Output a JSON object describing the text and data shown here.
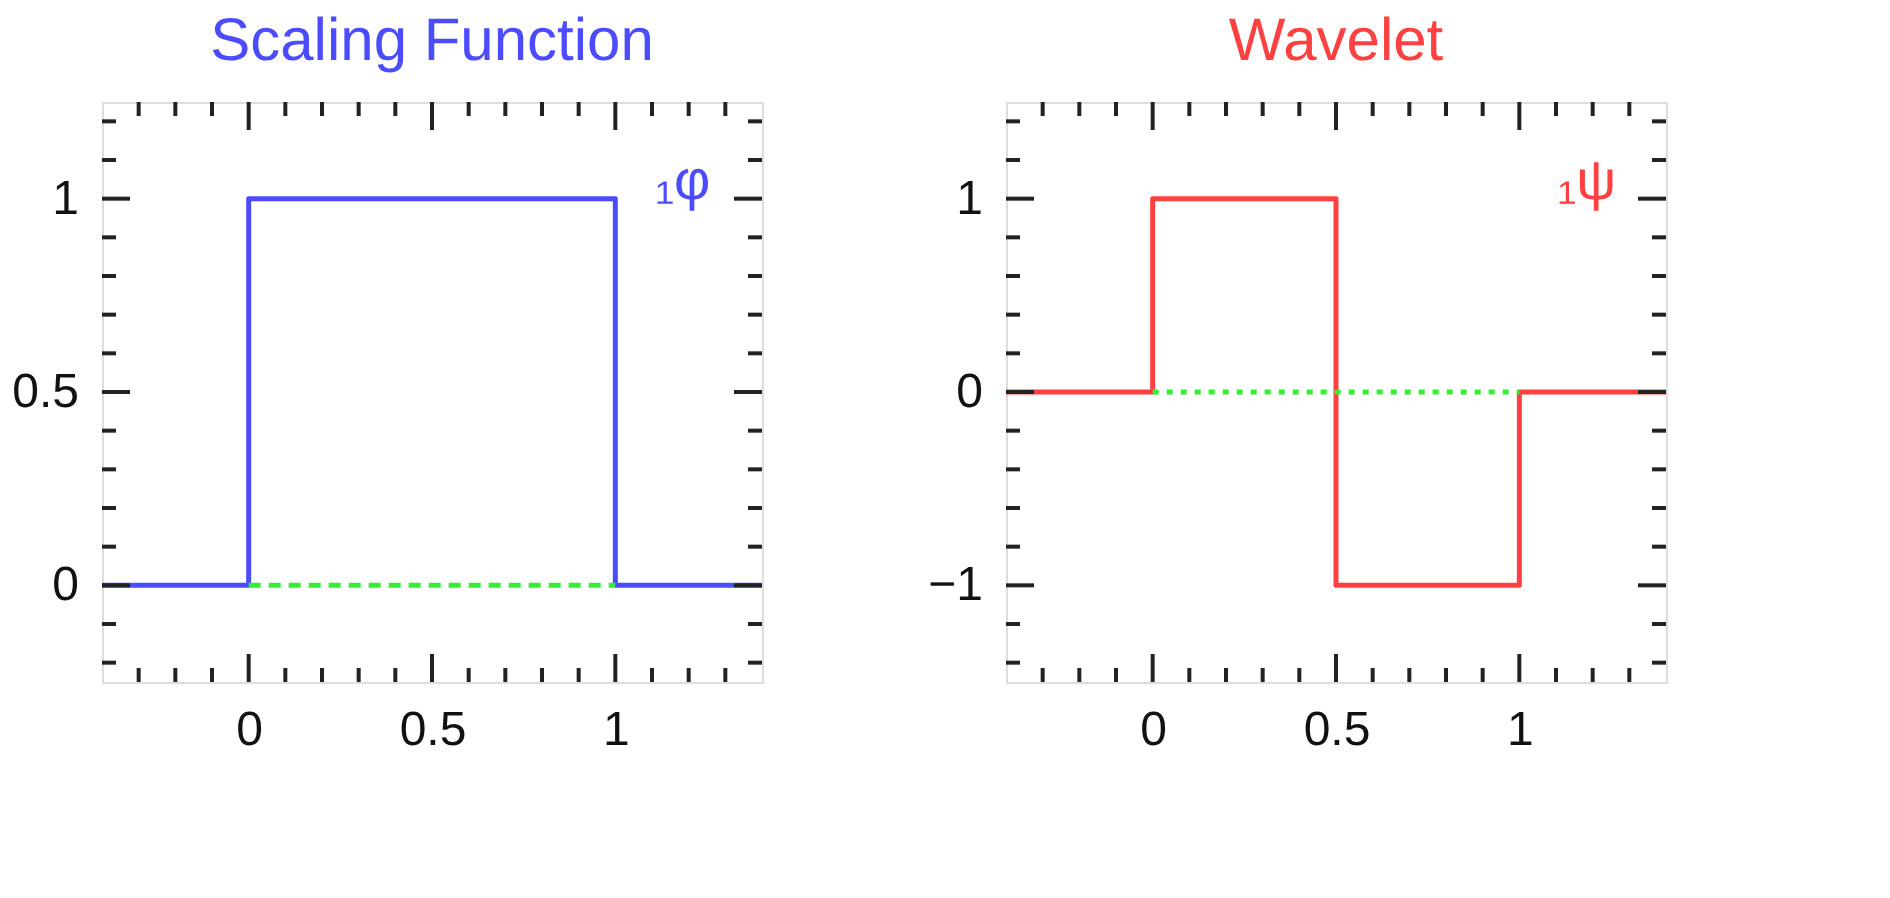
{
  "chart_data": [
    {
      "type": "line",
      "title": "Scaling Function",
      "xlim": [
        -0.4,
        1.4
      ],
      "ylim": [
        -0.25,
        1.25
      ],
      "xticks": [
        {
          "value": -0.3,
          "label": null
        },
        {
          "value": -0.2,
          "label": null
        },
        {
          "value": -0.1,
          "label": null
        },
        0,
        {
          "value": 0.1,
          "label": null
        },
        {
          "value": 0.2,
          "label": null
        },
        {
          "value": 0.3,
          "label": null
        },
        {
          "value": 0.4,
          "label": null
        },
        0.5,
        {
          "value": 0.6,
          "label": null
        },
        {
          "value": 0.7,
          "label": null
        },
        {
          "value": 0.8,
          "label": null
        },
        {
          "value": 0.9,
          "label": null
        },
        1,
        {
          "value": 1.1,
          "label": null
        },
        {
          "value": 1.2,
          "label": null
        },
        {
          "value": 1.3,
          "label": null
        }
      ],
      "yticks": [
        {
          "value": -0.2,
          "label": null
        },
        {
          "value": -0.1,
          "label": null
        },
        0,
        {
          "value": 0.1,
          "label": null
        },
        {
          "value": 0.2,
          "label": null
        },
        {
          "value": 0.3,
          "label": null
        },
        {
          "value": 0.4,
          "label": null
        },
        0.5,
        {
          "value": 0.6,
          "label": null
        },
        {
          "value": 0.7,
          "label": null
        },
        {
          "value": 0.8,
          "label": null
        },
        {
          "value": 0.9,
          "label": null
        },
        1,
        {
          "value": 1.1,
          "label": null
        },
        {
          "value": 1.2,
          "label": null
        }
      ],
      "grid": false,
      "marker": "none",
      "series": [
        {
          "name": "₁φ",
          "color": "#4b4bff",
          "type": "line",
          "line_style": "solid",
          "x": [
            -0.4,
            0,
            0,
            1,
            1,
            1.4
          ],
          "values": [
            0,
            0,
            1,
            1,
            0,
            0
          ]
        },
        {
          "color": "#33ee33",
          "type": "line",
          "line_style": "dashed",
          "x": [
            0,
            1
          ],
          "values": [
            0,
            0
          ]
        }
      ]
    },
    {
      "type": "line",
      "title": "Wavelet",
      "xlim": [
        -0.4,
        1.4
      ],
      "ylim": [
        -1.5,
        1.5
      ],
      "xticks": [
        {
          "value": -0.3,
          "label": null
        },
        {
          "value": -0.2,
          "label": null
        },
        {
          "value": -0.1,
          "label": null
        },
        0,
        {
          "value": 0.1,
          "label": null
        },
        {
          "value": 0.2,
          "label": null
        },
        {
          "value": 0.3,
          "label": null
        },
        {
          "value": 0.4,
          "label": null
        },
        0.5,
        {
          "value": 0.6,
          "label": null
        },
        {
          "value": 0.7,
          "label": null
        },
        {
          "value": 0.8,
          "label": null
        },
        {
          "value": 0.9,
          "label": null
        },
        1,
        {
          "value": 1.1,
          "label": null
        },
        {
          "value": 1.2,
          "label": null
        },
        {
          "value": 1.3,
          "label": null
        }
      ],
      "yticks": [
        {
          "value": -1.4,
          "label": null
        },
        {
          "value": -1.2,
          "label": null
        },
        {
          "value": -1,
          "label": "−1"
        },
        {
          "value": -0.8,
          "label": null
        },
        {
          "value": -0.6,
          "label": null
        },
        {
          "value": -0.4,
          "label": null
        },
        {
          "value": -0.2,
          "label": null
        },
        0,
        {
          "value": 0.2,
          "label": null
        },
        {
          "value": 0.4,
          "label": null
        },
        {
          "value": 0.6,
          "label": null
        },
        {
          "value": 0.8,
          "label": null
        },
        1,
        {
          "value": 1.2,
          "label": null
        },
        {
          "value": 1.4,
          "label": null
        }
      ],
      "grid": false,
      "marker": "none",
      "series": [
        {
          "name": "₁ψ",
          "color": "#ff4040",
          "type": "line",
          "line_style": "solid",
          "x": [
            -0.4,
            0,
            0,
            0.5,
            0.5,
            1,
            1,
            1.4
          ],
          "values": [
            0,
            0,
            1,
            1,
            -1,
            -1,
            0,
            0
          ]
        },
        {
          "color": "#33ee33",
          "type": "line",
          "line_style": "dotted",
          "x": [
            0,
            1
          ],
          "values": [
            0,
            0
          ]
        }
      ]
    }
  ]
}
